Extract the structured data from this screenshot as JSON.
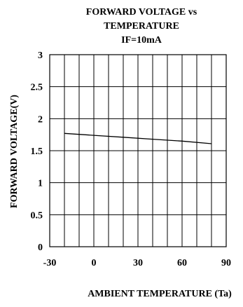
{
  "chart_data": {
    "type": "line",
    "title_lines": [
      "FORWARD VOLTAGE vs",
      "TEMPERATURE",
      "IF=10mA"
    ],
    "xlabel": "AMBIENT TEMPERATURE (Ta)",
    "ylabel": "FORWARD VOLTAGE(V)",
    "xlim": [
      -30,
      90
    ],
    "ylim": [
      0,
      3
    ],
    "x_ticks": [
      -30,
      0,
      30,
      60,
      90
    ],
    "y_ticks": [
      0,
      0.5,
      1,
      1.5,
      2,
      2.5,
      3
    ],
    "grid": true,
    "series": [
      {
        "x": [
          -20,
          0,
          20,
          40,
          60,
          80
        ],
        "values": [
          1.77,
          1.74,
          1.71,
          1.68,
          1.65,
          1.61
        ]
      }
    ],
    "colors": {
      "line": "#000000",
      "grid": "#000000",
      "background": "#ffffff"
    }
  }
}
